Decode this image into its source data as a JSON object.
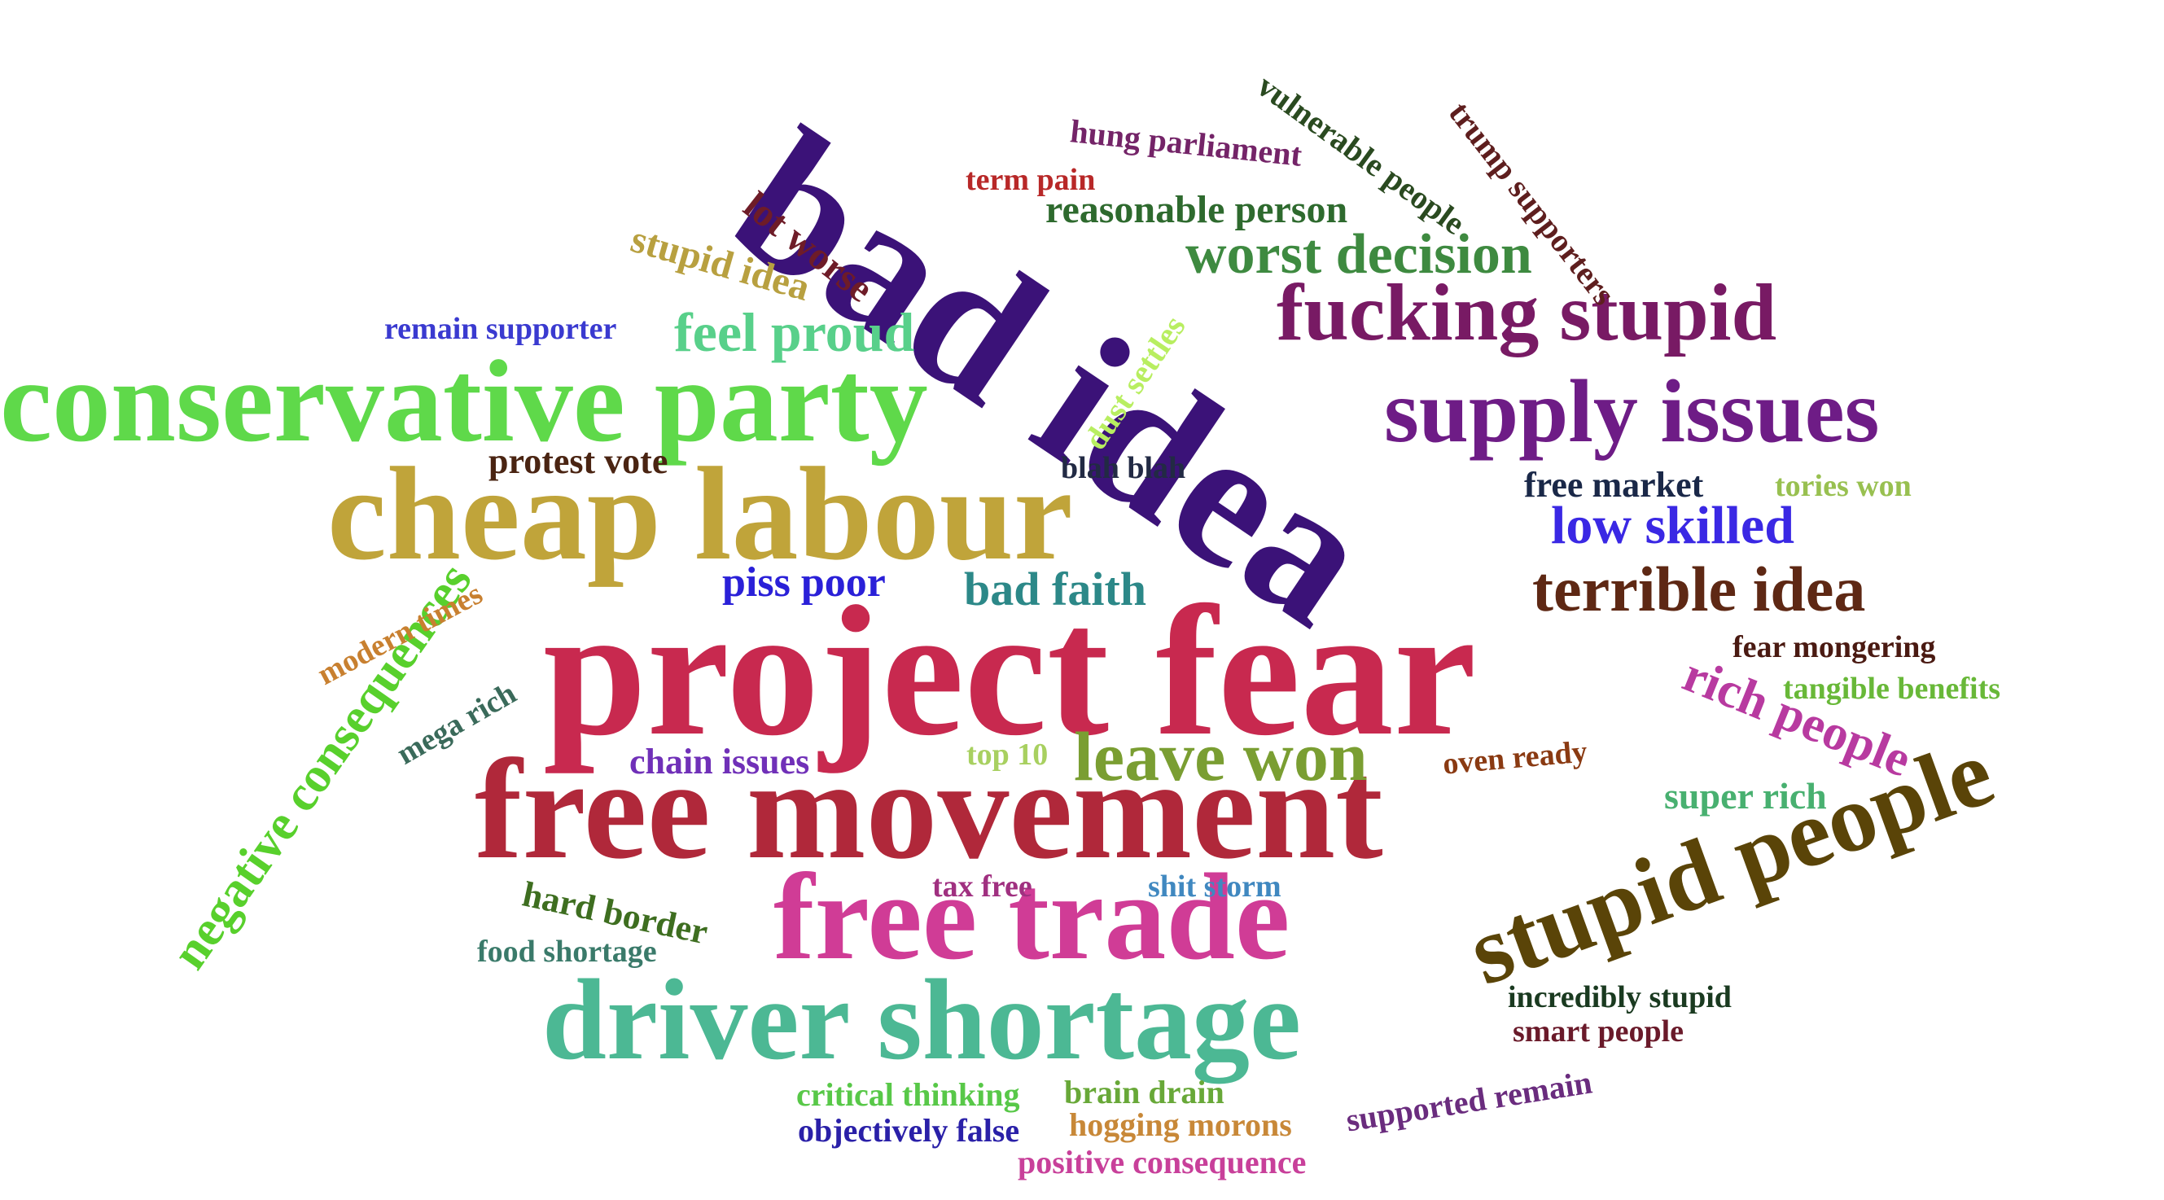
{
  "words": [
    {
      "text": "project fear",
      "color": "#c8294f"
    },
    {
      "text": "free movement",
      "color": "#b0283a"
    },
    {
      "text": "bad idea",
      "color": "#3b1278"
    },
    {
      "text": "cheap labour",
      "color": "#c0a43a"
    },
    {
      "text": "conservative party",
      "color": "#5fd94a"
    },
    {
      "text": "driver shortage",
      "color": "#4cb894"
    },
    {
      "text": "free trade",
      "color": "#d03c96"
    },
    {
      "text": "stupid people",
      "color": "#5a4408"
    },
    {
      "text": "supply issues",
      "color": "#6e1c86"
    },
    {
      "text": "fucking stupid",
      "color": "#781a64"
    },
    {
      "text": "leave won",
      "color": "#7a9e32"
    },
    {
      "text": "terrible idea",
      "color": "#5e2814"
    },
    {
      "text": "negative consequences",
      "color": "#58d02c"
    },
    {
      "text": "worst decision",
      "color": "#3e8a40"
    },
    {
      "text": "feel proud",
      "color": "#58d08a"
    },
    {
      "text": "rich people",
      "color": "#b83aa0"
    },
    {
      "text": "low skilled",
      "color": "#3a28e4"
    },
    {
      "text": "bad faith",
      "color": "#2c8888"
    },
    {
      "text": "reasonable person",
      "color": "#2e6a2e"
    },
    {
      "text": "stupid idea",
      "color": "#b8a040"
    },
    {
      "text": "lot worse",
      "color": "#6e1c28"
    },
    {
      "text": "piss poor",
      "color": "#2a20d8"
    },
    {
      "text": "vulnerable people",
      "color": "#2a4a20"
    },
    {
      "text": "trump supporters",
      "color": "#5e1e1e"
    },
    {
      "text": "protest vote",
      "color": "#4a2412"
    },
    {
      "text": "remain supporter",
      "color": "#3a3ad0"
    },
    {
      "text": "dust settles",
      "color": "#b8ee60"
    },
    {
      "text": "free market",
      "color": "#1a2848"
    },
    {
      "text": "blah blah",
      "color": "#222a44"
    },
    {
      "text": "hung parliament",
      "color": "#742468"
    },
    {
      "text": "term pain",
      "color": "#b82828"
    },
    {
      "text": "tories won",
      "color": "#98c050"
    },
    {
      "text": "fear mongering",
      "color": "#4a1a12"
    },
    {
      "text": "tangible benefits",
      "color": "#68b838"
    },
    {
      "text": "super rich",
      "color": "#48b070"
    },
    {
      "text": "oven ready",
      "color": "#8a3a12"
    },
    {
      "text": "chain issues",
      "color": "#7030b8"
    },
    {
      "text": "top 10",
      "color": "#a8d060"
    },
    {
      "text": "modern times",
      "color": "#c88030"
    },
    {
      "text": "mega rich",
      "color": "#3a6a5a"
    },
    {
      "text": "hard border",
      "color": "#3e6e20"
    },
    {
      "text": "tax free",
      "color": "#a03080"
    },
    {
      "text": "shit storm",
      "color": "#4088c0"
    },
    {
      "text": "food shortage",
      "color": "#3a7a6a"
    },
    {
      "text": "incredibly stupid",
      "color": "#1a3a20"
    },
    {
      "text": "smart people",
      "color": "#6a1a2a"
    },
    {
      "text": "critical thinking",
      "color": "#58c848"
    },
    {
      "text": "brain drain",
      "color": "#68a838"
    },
    {
      "text": "supported remain",
      "color": "#6a2c7e"
    },
    {
      "text": "objectively false",
      "color": "#2a20a8"
    },
    {
      "text": "hogging morons",
      "color": "#c88838"
    },
    {
      "text": "positive consequence",
      "color": "#c8409a"
    }
  ]
}
